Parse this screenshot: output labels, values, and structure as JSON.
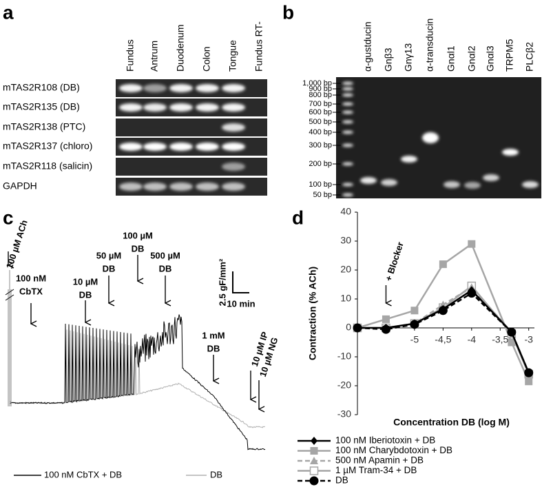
{
  "panel_a": {
    "label": "a",
    "lanes": [
      "Fundus",
      "Antrum",
      "Duodenum",
      "Colon",
      "Tongue",
      "Fundus RT-"
    ],
    "rows": [
      "mTAS2R108 (DB)",
      "mTAS2R135 (DB)",
      "mTAS2R138 (PTC)",
      "mTAS2R137 (chloro)",
      "mTAS2R118 (salicin)",
      "GAPDH"
    ]
  },
  "panel_b": {
    "label": "b",
    "lanes": [
      "α-gustducin",
      "Gnβ3",
      "Gnγ13",
      "α-transducin",
      "Gnαl1",
      "Gnαl2",
      "Gnαl3",
      "TRPM5",
      "PLCβ2"
    ],
    "ladder": [
      "1,000 bp",
      "900 bp",
      "800 bp",
      "700 bp",
      "600 bp",
      "500 bp",
      "400 bp",
      "300 bp",
      "200 bp",
      "100 bp",
      "50 bp"
    ]
  },
  "panel_c": {
    "label": "c",
    "annotations": [
      [
        "100 µM ACh"
      ],
      [
        "100 nM",
        "CbTX"
      ],
      [
        "10 µM",
        "DB"
      ],
      [
        "50 µM",
        "DB"
      ],
      [
        "100 µM",
        "DB"
      ],
      [
        "500 µM",
        "DB"
      ],
      [
        "1 mM",
        "DB"
      ],
      [
        "10 µM IP"
      ],
      [
        "10 µM NG"
      ]
    ],
    "scale_y": "2.5 gF/mm²",
    "scale_x": "10 min",
    "legend": [
      "100 nM CbTX + DB",
      "DB"
    ]
  },
  "chart_data": {
    "type": "line",
    "label": "d",
    "annotation": "+ Blocker",
    "x_label": "Concentration DB (log M)",
    "y_label": "Contraction (% ACh)",
    "x": [
      -6,
      -5.5,
      -5,
      -4.5,
      -4,
      -3.3,
      -3
    ],
    "xlim": [
      -6,
      -2.9
    ],
    "xticks": [
      -5,
      {
        "value": -4.5,
        "label": "-4,5"
      },
      -4,
      {
        "value": -3.5,
        "label": "-3,5"
      },
      -3
    ],
    "ylim": [
      -30,
      40
    ],
    "yticks": [
      -30,
      -20,
      -10,
      0,
      10,
      20,
      30,
      40
    ],
    "series": [
      {
        "name": "100 nM Iberiotoxin + DB",
        "color": "#000000",
        "marker": "diamond",
        "dashed": false,
        "values": [
          0,
          0,
          1.5,
          6.5,
          13,
          -1.5,
          -15.5
        ]
      },
      {
        "name": "100 nM Charybdotoxin + DB",
        "color": "#a6a6a6",
        "marker": "square",
        "dashed": false,
        "values": [
          0,
          3,
          6,
          22,
          29,
          -5,
          -18.5
        ]
      },
      {
        "name": "500 nM Apamin + DB",
        "color": "#a6a6a6",
        "marker": "triangle",
        "dashed": true,
        "values": [
          0,
          0,
          1.5,
          8,
          14,
          -1.5,
          -16
        ]
      },
      {
        "name": "1 µM Tram-34 + DB",
        "color": "#a6a6a6",
        "marker": "open-square",
        "dashed": false,
        "values": [
          0,
          0,
          1.5,
          7,
          14.5,
          -2,
          -16
        ]
      },
      {
        "name": "DB",
        "color": "#000000",
        "marker": "circle",
        "dashed": true,
        "values": [
          0,
          -0.5,
          1.2,
          6,
          12,
          -1.5,
          -15.5
        ]
      }
    ]
  }
}
